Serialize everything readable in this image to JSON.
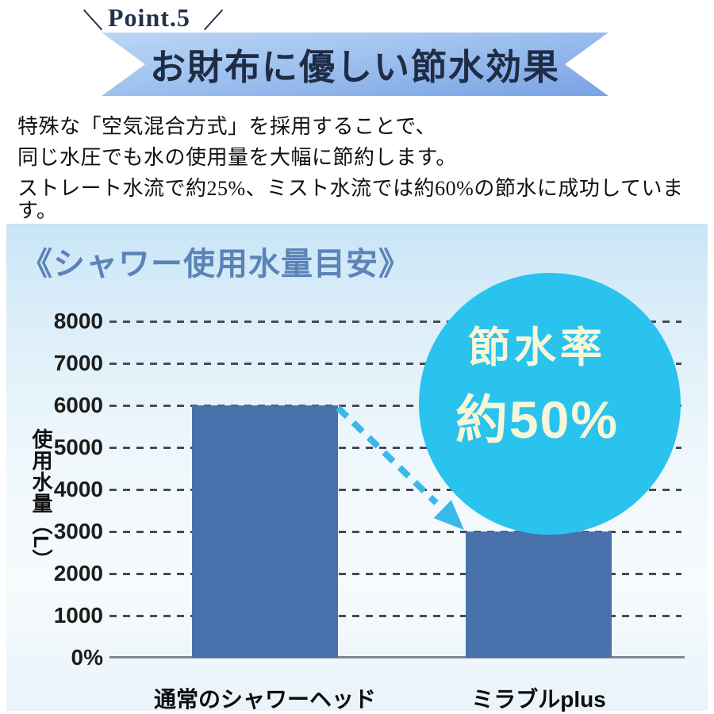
{
  "header": {
    "point_label": "Point.5",
    "ribbon_title": "お財布に優しい節水効果"
  },
  "intro": {
    "lines": [
      "特殊な「空気混合方式」を採用することで、",
      "同じ水圧でも水の使用量を大幅に節約します。",
      "ストレート水流で約25%、ミスト水流では約60%の節水に成功しています。"
    ]
  },
  "badge": {
    "line1": "節水率",
    "line2": "約50%"
  },
  "chart_data": {
    "type": "bar",
    "title": "《シャワー使用水量目安》",
    "ylabel": "使用水量（L）",
    "categories": [
      "通常のシャワーヘッド",
      "ミラブルplus"
    ],
    "values": [
      6000,
      3000
    ],
    "ylim": [
      0,
      8000
    ],
    "yticks": [
      {
        "value": 8000,
        "label": "8000"
      },
      {
        "value": 7000,
        "label": "7000"
      },
      {
        "value": 6000,
        "label": "6000"
      },
      {
        "value": 5000,
        "label": "5000"
      },
      {
        "value": 4000,
        "label": "4000"
      },
      {
        "value": 3000,
        "label": "3000"
      },
      {
        "value": 2000,
        "label": "2000"
      },
      {
        "value": 1000,
        "label": "1000"
      },
      {
        "value": 0,
        "label": "0%"
      }
    ],
    "grid": "horizontal-dashed",
    "legend": "none",
    "annotation": "節水率約50% (arrow from top of bar 1 down to top of bar 2)",
    "bar_color": "#4871ab"
  },
  "colors": {
    "ribbon_blue": "#7aa2e4",
    "panel_top": "#c9e5f7",
    "bar": "#4871ab",
    "badge_circle": "#29c3ee",
    "badge_text": "#f6f6d8",
    "chart_title": "#5b83b6",
    "arrow": "#3ab8ea",
    "dark_navy": "#24304d"
  }
}
